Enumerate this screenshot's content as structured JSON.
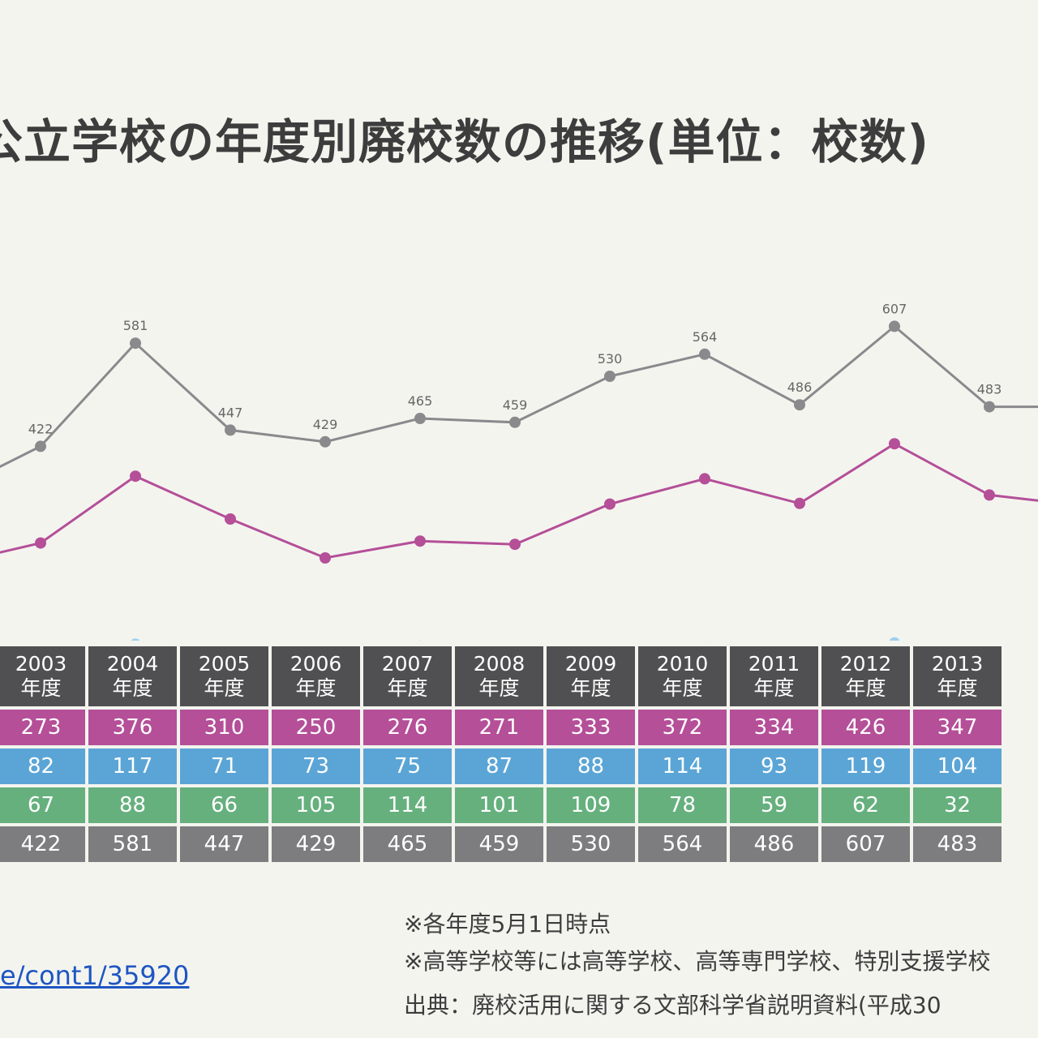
{
  "title": "公立学校の年度別廃校数の推移(単位：校数)",
  "notes": [
    "※各年度5月1日時点",
    "※高等学校等には高等学校、高等専門学校、特別支援学校",
    "出典：廃校活用に関する文部科学省説明資料(平成30"
  ],
  "link_text": "e/cont1/35920",
  "year_suffix": "年度",
  "colors": {
    "total": "#8a8a8d",
    "elementary": "#b44f98",
    "middle": "#5ba5d6",
    "high": "#66b07e",
    "header": "#505052"
  },
  "chart_data": {
    "type": "line",
    "categories": [
      "2003",
      "2004",
      "2005",
      "2006",
      "2007",
      "2008",
      "2009",
      "2010",
      "2011",
      "2012",
      "2013"
    ],
    "series": [
      {
        "key": "r1",
        "color": "#b44f98",
        "values": [
          273,
          376,
          310,
          250,
          276,
          271,
          333,
          372,
          334,
          426,
          347
        ]
      },
      {
        "key": "r2",
        "color": "#9ed0ee",
        "values": [
          82,
          117,
          71,
          73,
          75,
          87,
          88,
          114,
          93,
          119,
          104
        ]
      },
      {
        "key": "r3",
        "color": "#66b07e",
        "values": [
          67,
          88,
          66,
          105,
          114,
          101,
          109,
          78,
          59,
          62,
          32
        ]
      },
      {
        "key": "r4",
        "color": "#8a8a8d",
        "values": [
          422,
          581,
          447,
          429,
          465,
          459,
          530,
          564,
          486,
          607,
          483
        ]
      }
    ],
    "labeled_series": "r4"
  }
}
